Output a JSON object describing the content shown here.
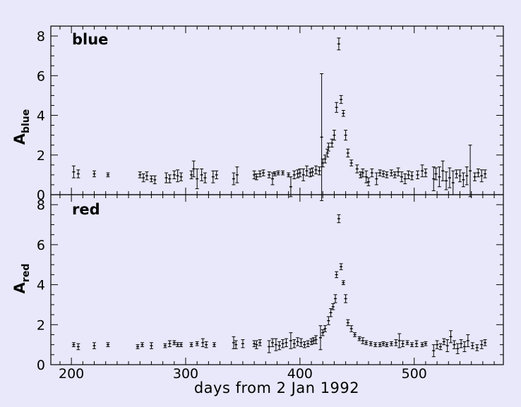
{
  "chart_data": {
    "type": "scatter",
    "xlabel": "days from 2 Jan 1992",
    "xlim": [
      182,
      578
    ],
    "x_ticks": [
      200,
      300,
      400,
      500
    ],
    "background": "#e8e8fa",
    "panels": [
      {
        "label": "blue",
        "ylabel_main": "A",
        "ylabel_sub": "blue",
        "ylim": [
          0,
          8.5
        ],
        "y_ticks": [
          0,
          2,
          4,
          6,
          8
        ],
        "points": [
          [
            202,
            1.15,
            0.3
          ],
          [
            206,
            1.05,
            0.2
          ],
          [
            220,
            1.05,
            0.15
          ],
          [
            232,
            1.0,
            0.1
          ],
          [
            260,
            1.0,
            0.15
          ],
          [
            263,
            0.85,
            0.2
          ],
          [
            266,
            0.95,
            0.2
          ],
          [
            270,
            0.8,
            0.15
          ],
          [
            273,
            0.75,
            0.2
          ],
          [
            283,
            0.85,
            0.25
          ],
          [
            286,
            0.8,
            0.2
          ],
          [
            290,
            1.0,
            0.2
          ],
          [
            293,
            0.95,
            0.3
          ],
          [
            296,
            0.9,
            0.2
          ],
          [
            305,
            1.0,
            0.2
          ],
          [
            307,
            1.3,
            0.4
          ],
          [
            310,
            0.8,
            0.5
          ],
          [
            314,
            1.0,
            0.3
          ],
          [
            317,
            0.85,
            0.25
          ],
          [
            324,
            0.9,
            0.3
          ],
          [
            327,
            1.0,
            0.2
          ],
          [
            342,
            0.8,
            0.3
          ],
          [
            345,
            1.0,
            0.4
          ],
          [
            360,
            1.0,
            0.2
          ],
          [
            362,
            0.9,
            0.15
          ],
          [
            365,
            1.05,
            0.15
          ],
          [
            368,
            1.1,
            0.15
          ],
          [
            373,
            1.0,
            0.15
          ],
          [
            376,
            0.8,
            0.3
          ],
          [
            378,
            1.05,
            0.1
          ],
          [
            381,
            1.1,
            0.1
          ],
          [
            385,
            1.1,
            0.1
          ],
          [
            390,
            1.0,
            0.1
          ],
          [
            392,
            0.4,
            0.5
          ],
          [
            395,
            1.0,
            0.2
          ],
          [
            398,
            1.05,
            0.2
          ],
          [
            400,
            1.1,
            0.2
          ],
          [
            403,
            1.0,
            0.3
          ],
          [
            406,
            1.2,
            0.25
          ],
          [
            409,
            1.1,
            0.2
          ],
          [
            411,
            1.15,
            0.2
          ],
          [
            414,
            1.25,
            0.2
          ],
          [
            417,
            1.2,
            0.2
          ],
          [
            419,
            2.9,
            3.2
          ],
          [
            420,
            1.6,
            0.2
          ],
          [
            422,
            1.8,
            0.2
          ],
          [
            424,
            2.1,
            0.2
          ],
          [
            425,
            2.4,
            0.2
          ],
          [
            428,
            2.6,
            0.2
          ],
          [
            430,
            3.0,
            0.25
          ],
          [
            432,
            4.4,
            0.25
          ],
          [
            434,
            7.6,
            0.3
          ],
          [
            436,
            4.8,
            0.2
          ],
          [
            438,
            4.1,
            0.15
          ],
          [
            440,
            3.0,
            0.25
          ],
          [
            442,
            2.1,
            0.2
          ],
          [
            445,
            1.6,
            0.15
          ],
          [
            450,
            1.3,
            0.2
          ],
          [
            453,
            1.0,
            0.15
          ],
          [
            455,
            1.1,
            0.2
          ],
          [
            458,
            0.9,
            0.3
          ],
          [
            460,
            0.65,
            0.2
          ],
          [
            463,
            1.1,
            0.2
          ],
          [
            467,
            0.8,
            0.3
          ],
          [
            470,
            1.1,
            0.15
          ],
          [
            473,
            1.05,
            0.15
          ],
          [
            476,
            1.0,
            0.15
          ],
          [
            480,
            1.1,
            0.15
          ],
          [
            483,
            1.0,
            0.15
          ],
          [
            486,
            1.15,
            0.2
          ],
          [
            489,
            0.9,
            0.25
          ],
          [
            492,
            0.8,
            0.25
          ],
          [
            495,
            1.0,
            0.2
          ],
          [
            498,
            0.95,
            0.2
          ],
          [
            503,
            1.0,
            0.2
          ],
          [
            507,
            1.2,
            0.3
          ],
          [
            510,
            1.1,
            0.2
          ],
          [
            517,
            0.8,
            0.6
          ],
          [
            519,
            1.05,
            0.3
          ],
          [
            522,
            0.9,
            0.5
          ],
          [
            525,
            1.2,
            0.5
          ],
          [
            528,
            0.7,
            0.45
          ],
          [
            531,
            0.85,
            0.5
          ],
          [
            534,
            0.6,
            0.6
          ],
          [
            537,
            1.05,
            0.2
          ],
          [
            540,
            0.95,
            0.3
          ],
          [
            543,
            0.75,
            0.35
          ],
          [
            546,
            0.95,
            0.45
          ],
          [
            549,
            1.2,
            1.3
          ],
          [
            553,
            0.9,
            0.2
          ],
          [
            556,
            1.1,
            0.2
          ],
          [
            559,
            0.95,
            0.3
          ],
          [
            562,
            1.05,
            0.2
          ]
        ]
      },
      {
        "label": "red",
        "ylabel_main": "A",
        "ylabel_sub": "red",
        "ylim": [
          0,
          8.5
        ],
        "y_ticks": [
          0,
          2,
          4,
          6,
          8
        ],
        "points": [
          [
            202,
            1.0,
            0.1
          ],
          [
            206,
            0.9,
            0.15
          ],
          [
            220,
            0.95,
            0.15
          ],
          [
            232,
            1.0,
            0.1
          ],
          [
            258,
            0.9,
            0.1
          ],
          [
            262,
            1.0,
            0.1
          ],
          [
            270,
            0.95,
            0.15
          ],
          [
            282,
            0.95,
            0.1
          ],
          [
            286,
            1.05,
            0.15
          ],
          [
            290,
            1.1,
            0.1
          ],
          [
            293,
            1.0,
            0.1
          ],
          [
            296,
            1.0,
            0.1
          ],
          [
            305,
            1.0,
            0.1
          ],
          [
            310,
            1.05,
            0.1
          ],
          [
            315,
            1.1,
            0.2
          ],
          [
            318,
            1.0,
            0.15
          ],
          [
            325,
            1.0,
            0.1
          ],
          [
            342,
            1.1,
            0.3
          ],
          [
            344,
            1.0,
            0.2
          ],
          [
            350,
            1.05,
            0.2
          ],
          [
            360,
            1.05,
            0.15
          ],
          [
            362,
            1.0,
            0.2
          ],
          [
            365,
            1.1,
            0.15
          ],
          [
            373,
            0.9,
            0.3
          ],
          [
            376,
            1.1,
            0.2
          ],
          [
            379,
            1.0,
            0.3
          ],
          [
            382,
            0.95,
            0.2
          ],
          [
            385,
            1.05,
            0.2
          ],
          [
            388,
            1.1,
            0.2
          ],
          [
            392,
            1.2,
            0.4
          ],
          [
            395,
            1.05,
            0.2
          ],
          [
            398,
            1.15,
            0.2
          ],
          [
            401,
            1.1,
            0.2
          ],
          [
            404,
            1.0,
            0.15
          ],
          [
            407,
            1.05,
            0.15
          ],
          [
            410,
            1.15,
            0.15
          ],
          [
            412,
            1.2,
            0.15
          ],
          [
            414,
            1.25,
            0.2
          ],
          [
            418,
            1.35,
            0.6
          ],
          [
            420,
            1.6,
            0.15
          ],
          [
            422,
            1.8,
            0.15
          ],
          [
            425,
            2.2,
            0.2
          ],
          [
            427,
            2.6,
            0.2
          ],
          [
            429,
            2.9,
            0.15
          ],
          [
            431,
            3.3,
            0.2
          ],
          [
            432,
            4.5,
            0.15
          ],
          [
            434,
            7.3,
            0.2
          ],
          [
            436,
            4.9,
            0.15
          ],
          [
            438,
            4.1,
            0.1
          ],
          [
            440,
            3.3,
            0.2
          ],
          [
            442,
            2.1,
            0.15
          ],
          [
            445,
            1.8,
            0.15
          ],
          [
            448,
            1.5,
            0.1
          ],
          [
            452,
            1.3,
            0.1
          ],
          [
            455,
            1.2,
            0.15
          ],
          [
            458,
            1.1,
            0.1
          ],
          [
            462,
            1.05,
            0.1
          ],
          [
            466,
            1.0,
            0.1
          ],
          [
            470,
            1.0,
            0.1
          ],
          [
            473,
            1.05,
            0.1
          ],
          [
            476,
            1.0,
            0.1
          ],
          [
            480,
            1.05,
            0.1
          ],
          [
            484,
            1.1,
            0.15
          ],
          [
            487,
            1.2,
            0.35
          ],
          [
            490,
            1.05,
            0.15
          ],
          [
            494,
            1.1,
            0.1
          ],
          [
            498,
            1.0,
            0.1
          ],
          [
            502,
            1.05,
            0.15
          ],
          [
            507,
            1.0,
            0.1
          ],
          [
            510,
            1.05,
            0.1
          ],
          [
            517,
            0.7,
            0.3
          ],
          [
            520,
            1.0,
            0.2
          ],
          [
            523,
            0.9,
            0.15
          ],
          [
            526,
            1.15,
            0.15
          ],
          [
            529,
            0.95,
            0.3
          ],
          [
            532,
            1.4,
            0.3
          ],
          [
            535,
            1.0,
            0.2
          ],
          [
            538,
            0.8,
            0.25
          ],
          [
            541,
            1.05,
            0.2
          ],
          [
            544,
            0.9,
            0.25
          ],
          [
            547,
            1.2,
            0.3
          ],
          [
            551,
            0.95,
            0.15
          ],
          [
            555,
            0.85,
            0.15
          ],
          [
            559,
            1.0,
            0.2
          ],
          [
            562,
            1.1,
            0.15
          ]
        ]
      }
    ]
  }
}
